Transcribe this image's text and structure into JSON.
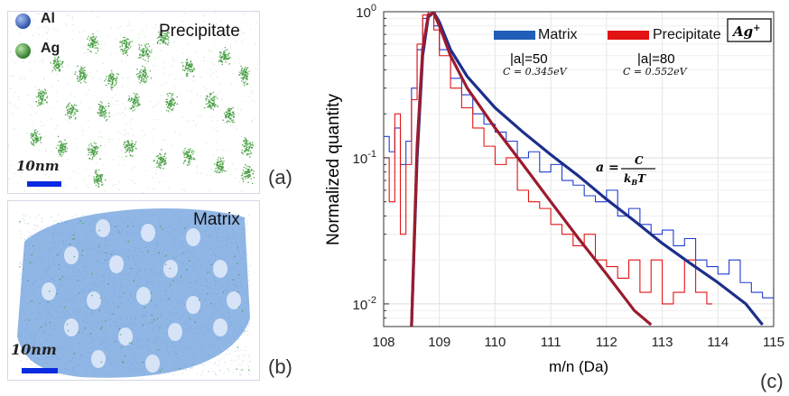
{
  "panel_a": {
    "legend": [
      {
        "label": "Al",
        "color": "#3a66c8"
      },
      {
        "label": "Ag",
        "color": "#3f9a3a"
      }
    ],
    "corner_label": "Precipitate",
    "scalebar_label": "10nm",
    "panel_label": "(a)"
  },
  "panel_b": {
    "corner_label": "Matrix",
    "scalebar_label": "10nm",
    "panel_label": "(b)"
  },
  "panel_c": {
    "panel_label": "(c)"
  },
  "colors": {
    "matrix": "#1f3cd0",
    "matrix_fit": "#1c2f8c",
    "precipitate": "#e31414",
    "precipitate_fit": "#9b1b2e",
    "ag_points": "#3f9a3a",
    "matrix_points": "#7da9e0"
  },
  "chart_data": {
    "type": "line",
    "xlabel": "m/n (Da)",
    "ylabel": "Normalized quantity",
    "xlim": [
      108,
      115
    ],
    "ylim": [
      0.007,
      1
    ],
    "yscale": "log",
    "xticks": [
      "108",
      "109",
      "110",
      "111",
      "112",
      "113",
      "114",
      "115"
    ],
    "yticks": [
      {
        "base": "10",
        "exp": "0",
        "value": 1
      },
      {
        "base": "10",
        "exp": "-1",
        "value": 0.1
      },
      {
        "base": "10",
        "exp": "-2",
        "value": 0.01
      }
    ],
    "grid": true,
    "legend": {
      "entries": [
        {
          "name": "Matrix",
          "color": "#1f5fb8"
        },
        {
          "name": "Precipitate",
          "color": "#e31414"
        }
      ],
      "placement": "top-right",
      "species_box": {
        "base": "Ag",
        "sup": "+"
      }
    },
    "annotations": {
      "matrix_a": "|a|=50",
      "matrix_c": "C = 0.345eV",
      "precip_a": "|a|=80",
      "precip_c": "C = 0.552eV",
      "formula_lhs": "a =",
      "formula_num": "C",
      "formula_den": "k",
      "formula_den_sub": "B",
      "formula_den_tail": "T"
    },
    "series": [
      {
        "name": "Matrix",
        "kind": "step",
        "color": "#1f3cd0",
        "x": [
          108.0,
          108.1,
          108.2,
          108.3,
          108.4,
          108.5,
          108.6,
          108.7,
          108.8,
          108.9,
          109.0,
          109.2,
          109.4,
          109.6,
          109.8,
          110.0,
          110.2,
          110.4,
          110.6,
          110.8,
          111.0,
          111.2,
          111.4,
          111.6,
          111.8,
          112.0,
          112.2,
          112.4,
          112.6,
          112.8,
          113.0,
          113.2,
          113.4,
          113.6,
          113.8,
          114.0,
          114.2,
          114.4,
          114.6,
          114.8,
          115.0
        ],
        "y": [
          0.14,
          0.11,
          0.16,
          0.09,
          0.13,
          0.3,
          0.55,
          0.9,
          1.0,
          0.8,
          0.55,
          0.35,
          0.27,
          0.2,
          0.17,
          0.15,
          0.13,
          0.1,
          0.11,
          0.08,
          0.09,
          0.07,
          0.065,
          0.055,
          0.05,
          0.06,
          0.04,
          0.045,
          0.035,
          0.03,
          0.032,
          0.025,
          0.028,
          0.02,
          0.018,
          0.016,
          0.02,
          0.014,
          0.012,
          0.011,
          0.013
        ]
      },
      {
        "name": "Precipitate",
        "kind": "step",
        "color": "#e31414",
        "x": [
          108.0,
          108.1,
          108.2,
          108.3,
          108.4,
          108.5,
          108.6,
          108.7,
          108.8,
          108.9,
          109.0,
          109.2,
          109.4,
          109.6,
          109.8,
          110.0,
          110.2,
          110.4,
          110.6,
          110.8,
          111.0,
          111.2,
          111.4,
          111.6,
          111.8,
          112.0,
          112.2,
          112.4,
          112.6,
          112.8,
          113.0,
          113.2,
          113.4,
          113.6,
          113.8
        ],
        "y": [
          0.1,
          0.05,
          0.2,
          0.03,
          0.09,
          0.25,
          0.6,
          0.95,
          1.0,
          0.75,
          0.5,
          0.3,
          0.22,
          0.16,
          0.12,
          0.09,
          0.1,
          0.06,
          0.05,
          0.045,
          0.035,
          0.03,
          0.025,
          0.03,
          0.02,
          0.018,
          0.015,
          0.02,
          0.012,
          0.02,
          0.01,
          0.012,
          0.02,
          0.012,
          0.01
        ]
      },
      {
        "name": "Matrix fit",
        "kind": "line",
        "color": "#1c2f8c",
        "x": [
          108.5,
          108.6,
          108.7,
          108.8,
          108.9,
          109.0,
          109.2,
          109.5,
          110.0,
          110.5,
          111.0,
          111.5,
          112.0,
          112.5,
          113.0,
          113.5,
          114.0,
          114.5,
          114.8
        ],
        "y": [
          0.007,
          0.1,
          0.5,
          0.92,
          0.99,
          0.85,
          0.55,
          0.36,
          0.22,
          0.15,
          0.105,
          0.075,
          0.052,
          0.037,
          0.026,
          0.019,
          0.014,
          0.01,
          0.0072
        ]
      },
      {
        "name": "Precipitate fit",
        "kind": "line",
        "color": "#9b1b2e",
        "x": [
          108.5,
          108.6,
          108.7,
          108.8,
          108.9,
          109.0,
          109.2,
          109.5,
          110.0,
          110.5,
          111.0,
          111.5,
          112.0,
          112.5,
          112.8
        ],
        "y": [
          0.007,
          0.12,
          0.55,
          0.95,
          0.98,
          0.8,
          0.5,
          0.3,
          0.16,
          0.09,
          0.05,
          0.028,
          0.016,
          0.009,
          0.0072
        ]
      }
    ]
  }
}
